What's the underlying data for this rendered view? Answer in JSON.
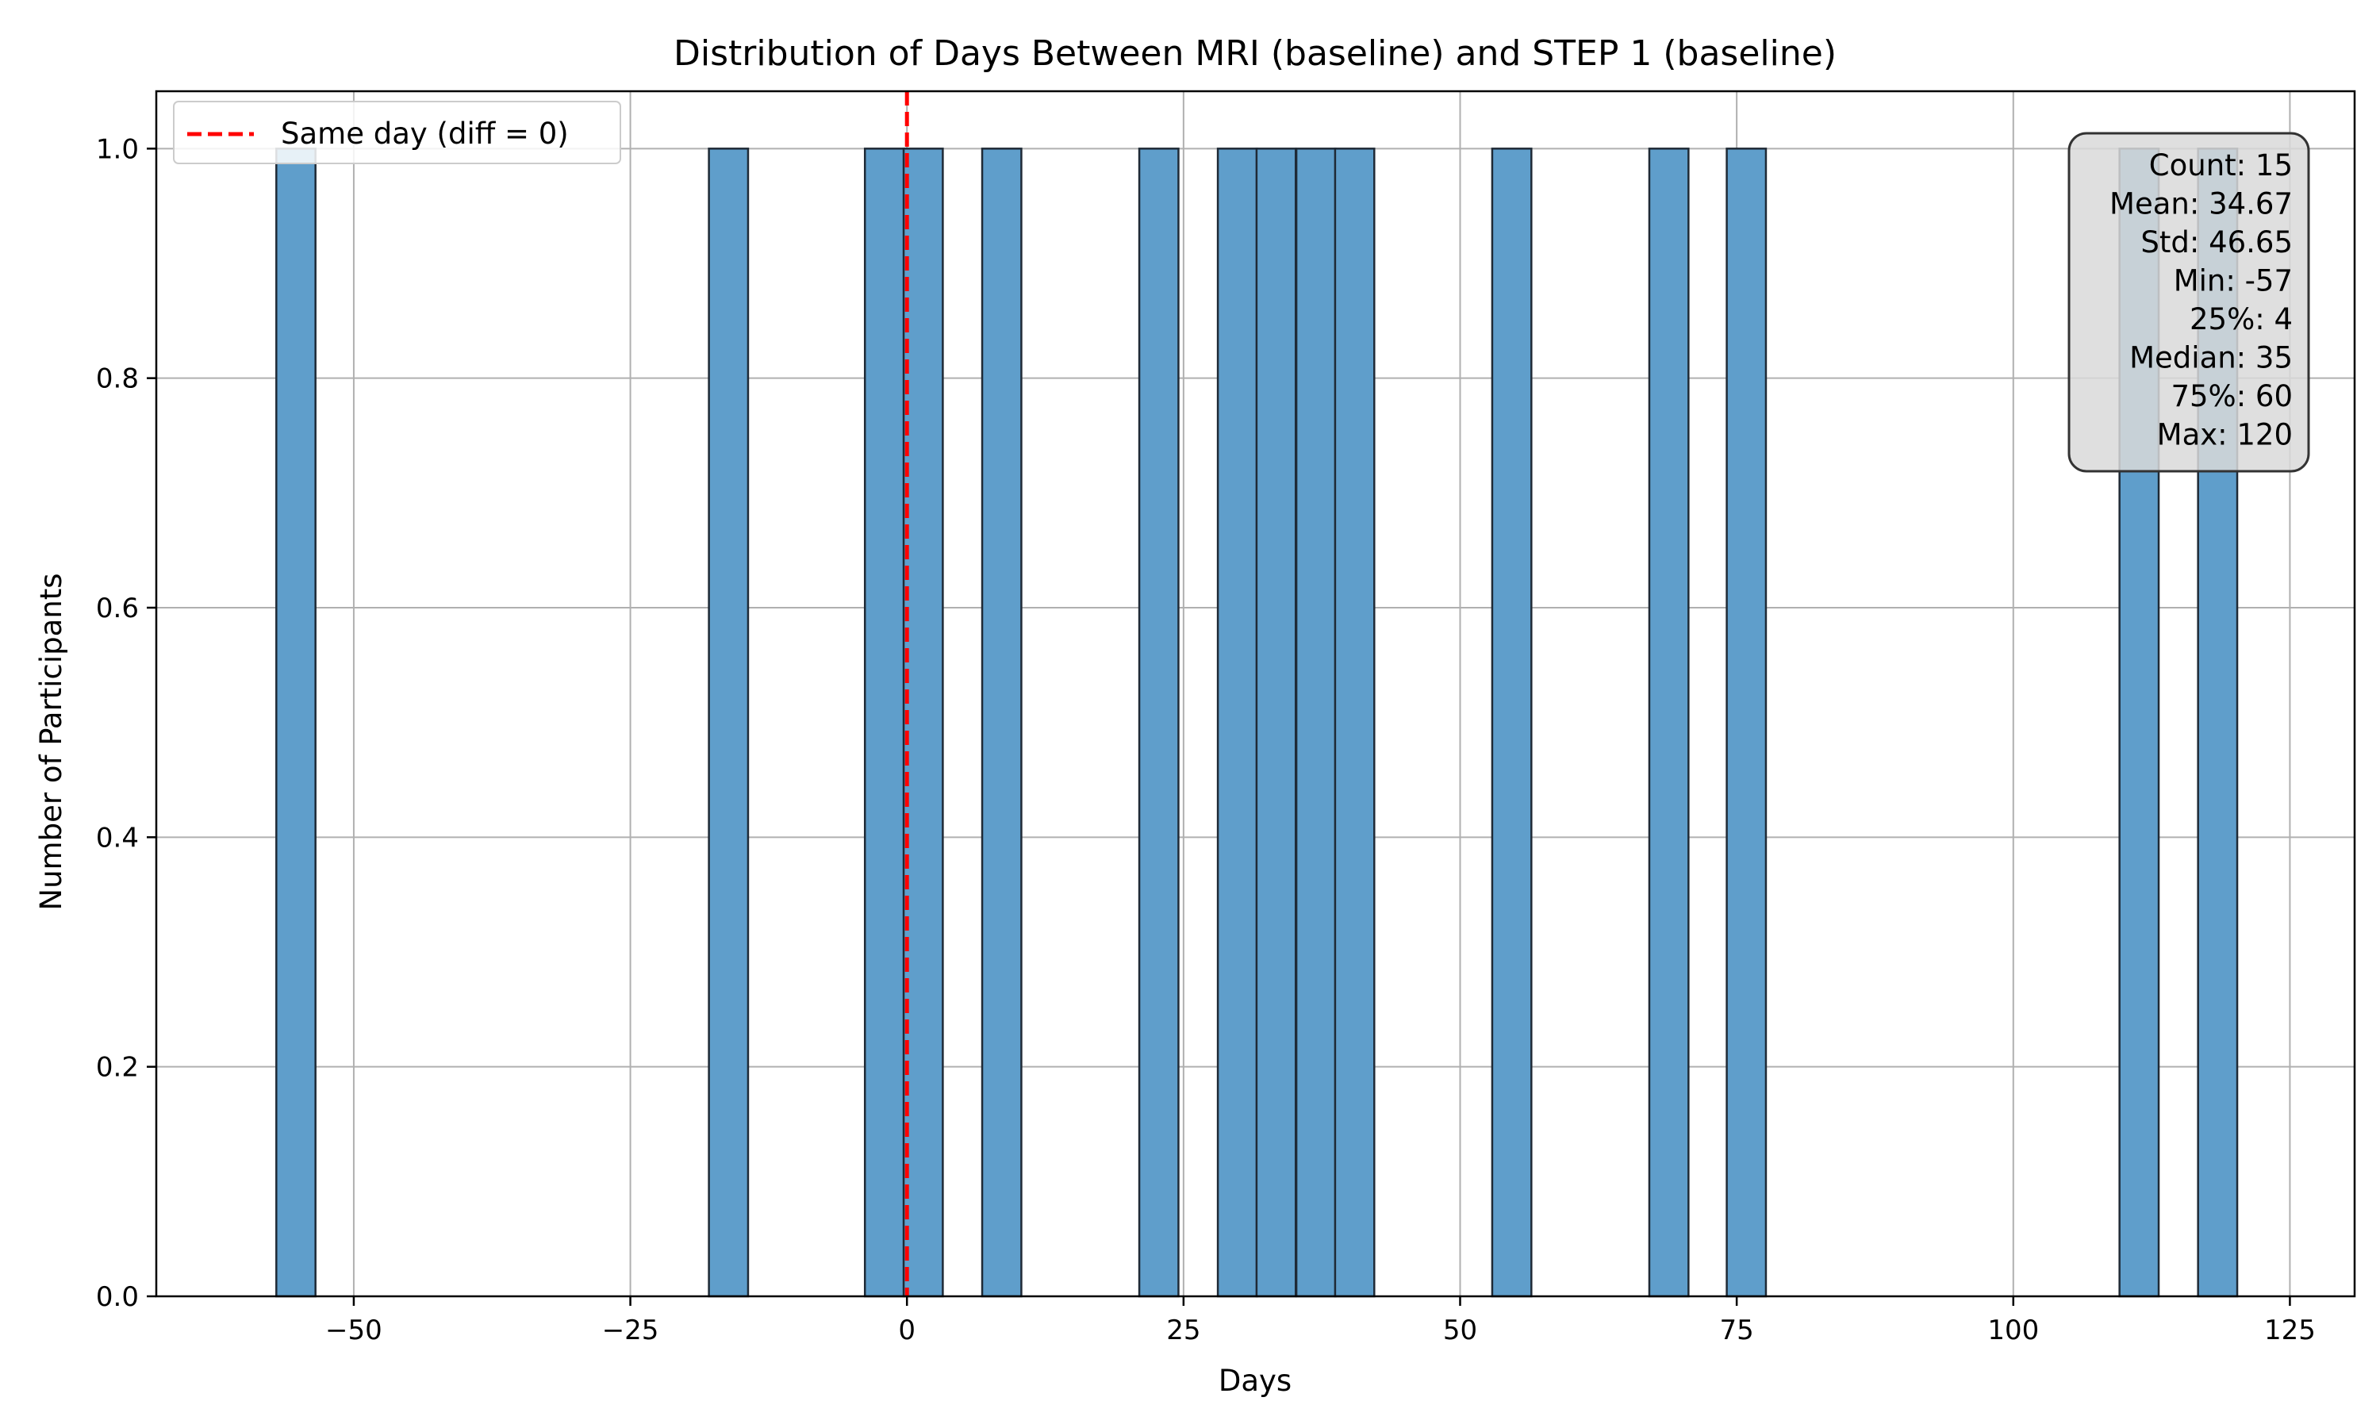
{
  "chart_data": {
    "type": "bar",
    "title": "Distribution of Days Between MRI (baseline) and STEP 1 (baseline)",
    "xlabel": "Days",
    "ylabel": "Number of Participants",
    "xlim": [
      -67.85,
      130.85
    ],
    "ylim": [
      0,
      1.05
    ],
    "xticks": [
      -50,
      -25,
      0,
      25,
      50,
      75,
      100,
      125
    ],
    "xtick_labels": [
      "−50",
      "−25",
      "0",
      "25",
      "50",
      "75",
      "100",
      "125"
    ],
    "yticks": [
      0,
      0.2,
      0.4,
      0.6,
      0.8,
      1.0
    ],
    "ytick_labels": [
      "0.0",
      "0.2",
      "0.4",
      "0.6",
      "0.8",
      "1.0"
    ],
    "bin_width": 3.54,
    "bars": [
      {
        "start": -57.0,
        "count": 1
      },
      {
        "start": -17.9,
        "count": 1
      },
      {
        "start": -3.8,
        "count": 1
      },
      {
        "start": -0.3,
        "count": 1
      },
      {
        "start": 6.8,
        "count": 1
      },
      {
        "start": 21.0,
        "count": 1
      },
      {
        "start": 28.1,
        "count": 1
      },
      {
        "start": 31.6,
        "count": 1
      },
      {
        "start": 35.2,
        "count": 1
      },
      {
        "start": 38.7,
        "count": 1
      },
      {
        "start": 52.9,
        "count": 1
      },
      {
        "start": 67.1,
        "count": 1
      },
      {
        "start": 74.1,
        "count": 1
      },
      {
        "start": 109.6,
        "count": 1
      },
      {
        "start": 116.7,
        "count": 1
      }
    ],
    "bar_color": "#5f9ecb",
    "reference_line": {
      "x": 0,
      "label": "Same day (diff = 0)",
      "color": "#ff0000"
    },
    "legend": {
      "position": "top-left",
      "entries": [
        "Same day (diff = 0)"
      ]
    },
    "grid": true,
    "stats_box": {
      "position": "top-right",
      "lines": [
        "Count: 15",
        "Mean: 34.67",
        "Std: 46.65",
        "Min: -57",
        "25%: 4",
        "Median: 35",
        "75%: 60",
        "Max: 120"
      ]
    }
  }
}
